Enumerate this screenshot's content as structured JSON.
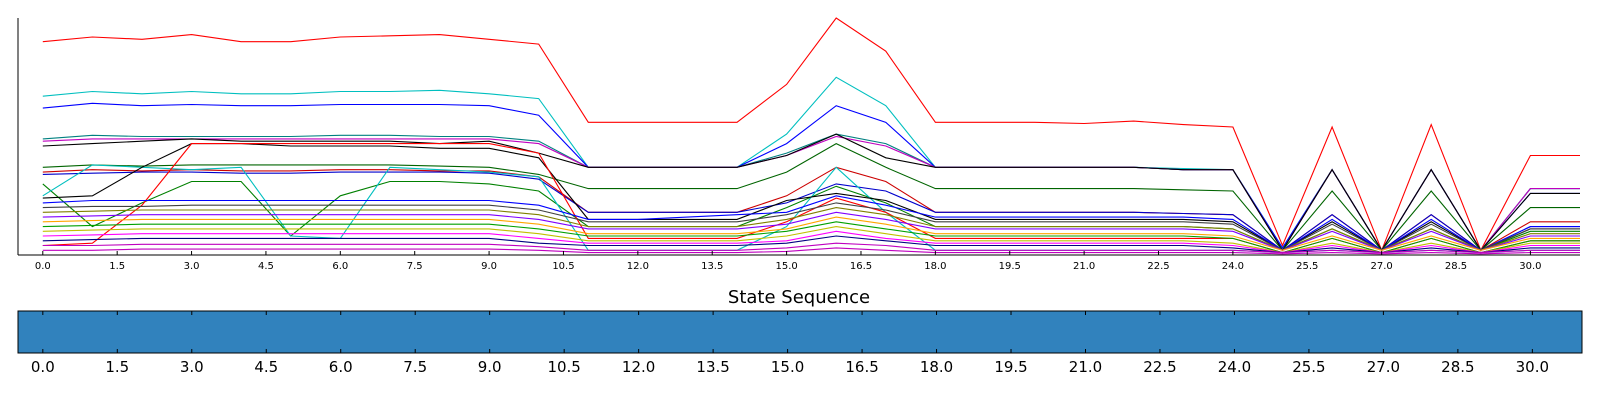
{
  "chart_data": [
    {
      "type": "line",
      "title": "",
      "xlabel": "",
      "ylabel": "",
      "xlim": [
        -0.5,
        31
      ],
      "ylim": [
        0,
        1
      ],
      "x_ticks": [
        "0.0",
        "1.5",
        "3.0",
        "4.5",
        "6.0",
        "7.5",
        "9.0",
        "10.5",
        "12.0",
        "13.5",
        "15.0",
        "16.5",
        "18.0",
        "19.5",
        "21.0",
        "22.5",
        "24.0",
        "25.5",
        "27.0",
        "28.5",
        "30.0"
      ],
      "x": [
        0,
        1,
        2,
        3,
        4,
        5,
        6,
        7,
        8,
        9,
        10,
        11,
        12,
        13,
        14,
        15,
        16,
        17,
        18,
        19,
        20,
        21,
        22,
        23,
        24,
        25,
        26,
        27,
        28,
        29,
        30,
        31
      ],
      "series": [
        {
          "color": "#ff0000",
          "values": [
            0.9,
            0.92,
            0.91,
            0.93,
            0.9,
            0.9,
            0.92,
            0.925,
            0.93,
            0.91,
            0.89,
            0.56,
            0.56,
            0.56,
            0.56,
            0.72,
            1.0,
            0.86,
            0.56,
            0.56,
            0.56,
            0.555,
            0.565,
            0.55,
            0.54,
            0.04,
            0.54,
            0.02,
            0.55,
            0.02,
            0.42,
            0.42
          ]
        },
        {
          "color": "#00bfbf",
          "values": [
            0.67,
            0.69,
            0.68,
            0.69,
            0.68,
            0.68,
            0.69,
            0.69,
            0.695,
            0.68,
            0.66,
            0.37,
            0.37,
            0.37,
            0.37,
            0.51,
            0.75,
            0.63,
            0.37,
            0.37,
            0.37,
            0.37,
            0.37,
            0.365,
            0.36,
            0.03,
            0.36,
            0.02,
            0.36,
            0.02,
            0.28,
            0.28
          ]
        },
        {
          "color": "#0000ff",
          "values": [
            0.62,
            0.64,
            0.63,
            0.635,
            0.63,
            0.63,
            0.635,
            0.635,
            0.635,
            0.63,
            0.59,
            0.37,
            0.37,
            0.37,
            0.37,
            0.47,
            0.63,
            0.56,
            0.37,
            0.37,
            0.37,
            0.37,
            0.37,
            0.36,
            0.36,
            0.03,
            0.36,
            0.02,
            0.36,
            0.02,
            0.26,
            0.26
          ]
        },
        {
          "color": "#008080",
          "values": [
            0.49,
            0.505,
            0.5,
            0.5,
            0.5,
            0.5,
            0.505,
            0.505,
            0.5,
            0.5,
            0.48,
            0.37,
            0.37,
            0.37,
            0.37,
            0.43,
            0.51,
            0.47,
            0.37,
            0.37,
            0.37,
            0.37,
            0.37,
            0.36,
            0.36,
            0.02,
            0.36,
            0.02,
            0.36,
            0.02,
            0.28,
            0.28
          ]
        },
        {
          "color": "#bf00bf",
          "values": [
            0.48,
            0.49,
            0.49,
            0.49,
            0.49,
            0.49,
            0.49,
            0.49,
            0.49,
            0.49,
            0.47,
            0.37,
            0.37,
            0.37,
            0.37,
            0.42,
            0.5,
            0.46,
            0.37,
            0.37,
            0.37,
            0.37,
            0.37,
            0.36,
            0.36,
            0.02,
            0.36,
            0.02,
            0.36,
            0.02,
            0.28,
            0.28
          ]
        },
        {
          "color": "#000000",
          "values": [
            0.46,
            0.47,
            0.48,
            0.49,
            0.48,
            0.48,
            0.48,
            0.48,
            0.47,
            0.48,
            0.43,
            0.37,
            0.37,
            0.37,
            0.37,
            0.42,
            0.51,
            0.41,
            0.37,
            0.37,
            0.37,
            0.37,
            0.37,
            0.36,
            0.36,
            0.02,
            0.36,
            0.02,
            0.36,
            0.02,
            0.26,
            0.26
          ]
        },
        {
          "color": "#006400",
          "values": [
            0.37,
            0.38,
            0.375,
            0.38,
            0.38,
            0.38,
            0.38,
            0.38,
            0.375,
            0.37,
            0.34,
            0.28,
            0.28,
            0.28,
            0.28,
            0.35,
            0.47,
            0.37,
            0.28,
            0.28,
            0.28,
            0.28,
            0.28,
            0.275,
            0.27,
            0.02,
            0.27,
            0.02,
            0.27,
            0.02,
            0.2,
            0.2
          ]
        },
        {
          "color": "#cc0000",
          "values": [
            0.35,
            0.36,
            0.355,
            0.36,
            0.355,
            0.355,
            0.36,
            0.36,
            0.355,
            0.355,
            0.33,
            0.18,
            0.18,
            0.18,
            0.18,
            0.25,
            0.37,
            0.31,
            0.18,
            0.18,
            0.18,
            0.18,
            0.18,
            0.175,
            0.17,
            0.02,
            0.17,
            0.02,
            0.17,
            0.02,
            0.14,
            0.14
          ]
        },
        {
          "color": "#0000cc",
          "values": [
            0.34,
            0.345,
            0.35,
            0.35,
            0.345,
            0.345,
            0.35,
            0.35,
            0.35,
            0.345,
            0.32,
            0.18,
            0.18,
            0.18,
            0.18,
            0.22,
            0.3,
            0.27,
            0.18,
            0.18,
            0.18,
            0.18,
            0.18,
            0.175,
            0.17,
            0.02,
            0.17,
            0.02,
            0.17,
            0.02,
            0.12,
            0.12
          ]
        },
        {
          "color": "#008000",
          "values": [
            0.3,
            0.12,
            0.22,
            0.31,
            0.31,
            0.08,
            0.25,
            0.31,
            0.31,
            0.3,
            0.27,
            0.12,
            0.12,
            0.12,
            0.12,
            0.2,
            0.29,
            0.22,
            0.12,
            0.12,
            0.12,
            0.12,
            0.12,
            0.12,
            0.11,
            0.02,
            0.11,
            0.02,
            0.11,
            0.02,
            0.1,
            0.1
          ]
        },
        {
          "color": "#00bfbf",
          "values": [
            0.25,
            0.38,
            0.37,
            0.36,
            0.37,
            0.08,
            0.07,
            0.37,
            0.36,
            0.35,
            0.33,
            0.02,
            0.02,
            0.02,
            0.02,
            0.12,
            0.37,
            0.18,
            0.02,
            0.02,
            0.02,
            0.02,
            0.02,
            0.02,
            0.02,
            0.01,
            0.02,
            0.01,
            0.02,
            0.01,
            0.02,
            0.02
          ]
        },
        {
          "color": "#000000",
          "values": [
            0.24,
            0.25,
            0.37,
            0.47,
            0.47,
            0.46,
            0.46,
            0.46,
            0.45,
            0.45,
            0.41,
            0.15,
            0.15,
            0.15,
            0.15,
            0.23,
            0.26,
            0.23,
            0.15,
            0.15,
            0.15,
            0.15,
            0.15,
            0.15,
            0.14,
            0.02,
            0.14,
            0.02,
            0.14,
            0.02,
            0.11,
            0.11
          ]
        },
        {
          "color": "#ff0000",
          "values": [
            0.04,
            0.05,
            0.21,
            0.47,
            0.47,
            0.47,
            0.47,
            0.47,
            0.47,
            0.47,
            0.43,
            0.07,
            0.07,
            0.07,
            0.07,
            0.14,
            0.24,
            0.18,
            0.07,
            0.07,
            0.07,
            0.07,
            0.07,
            0.07,
            0.07,
            0.01,
            0.07,
            0.01,
            0.07,
            0.01,
            0.06,
            0.06
          ]
        },
        {
          "color": "#0000ff",
          "values": [
            0.22,
            0.23,
            0.23,
            0.23,
            0.23,
            0.23,
            0.23,
            0.23,
            0.23,
            0.23,
            0.21,
            0.15,
            0.15,
            0.16,
            0.17,
            0.18,
            0.25,
            0.21,
            0.16,
            0.16,
            0.16,
            0.16,
            0.16,
            0.16,
            0.15,
            0.02,
            0.15,
            0.02,
            0.15,
            0.02,
            0.12,
            0.12
          ]
        },
        {
          "color": "#404040",
          "values": [
            0.2,
            0.205,
            0.205,
            0.21,
            0.21,
            0.21,
            0.21,
            0.21,
            0.21,
            0.21,
            0.19,
            0.14,
            0.14,
            0.14,
            0.14,
            0.17,
            0.22,
            0.19,
            0.14,
            0.14,
            0.14,
            0.14,
            0.14,
            0.14,
            0.13,
            0.02,
            0.13,
            0.02,
            0.13,
            0.02,
            0.11,
            0.11
          ]
        },
        {
          "color": "#808000",
          "values": [
            0.18,
            0.185,
            0.19,
            0.19,
            0.19,
            0.19,
            0.19,
            0.19,
            0.19,
            0.19,
            0.17,
            0.12,
            0.12,
            0.12,
            0.12,
            0.15,
            0.2,
            0.17,
            0.12,
            0.12,
            0.12,
            0.12,
            0.12,
            0.12,
            0.11,
            0.02,
            0.11,
            0.02,
            0.11,
            0.02,
            0.09,
            0.09
          ]
        },
        {
          "color": "#8000ff",
          "values": [
            0.16,
            0.165,
            0.17,
            0.17,
            0.17,
            0.17,
            0.17,
            0.17,
            0.17,
            0.17,
            0.15,
            0.11,
            0.11,
            0.11,
            0.11,
            0.13,
            0.18,
            0.15,
            0.11,
            0.11,
            0.11,
            0.11,
            0.11,
            0.11,
            0.1,
            0.02,
            0.1,
            0.02,
            0.1,
            0.02,
            0.08,
            0.08
          ]
        },
        {
          "color": "#ffa500",
          "values": [
            0.14,
            0.145,
            0.15,
            0.15,
            0.15,
            0.15,
            0.15,
            0.15,
            0.15,
            0.15,
            0.13,
            0.09,
            0.09,
            0.09,
            0.09,
            0.11,
            0.16,
            0.13,
            0.09,
            0.09,
            0.09,
            0.09,
            0.09,
            0.09,
            0.08,
            0.02,
            0.08,
            0.02,
            0.08,
            0.02,
            0.07,
            0.07
          ]
        },
        {
          "color": "#00a000",
          "values": [
            0.12,
            0.125,
            0.13,
            0.13,
            0.13,
            0.13,
            0.13,
            0.13,
            0.13,
            0.13,
            0.11,
            0.08,
            0.08,
            0.08,
            0.08,
            0.1,
            0.14,
            0.11,
            0.08,
            0.08,
            0.08,
            0.08,
            0.08,
            0.08,
            0.07,
            0.01,
            0.07,
            0.01,
            0.07,
            0.01,
            0.06,
            0.06
          ]
        },
        {
          "color": "#c0c000",
          "values": [
            0.1,
            0.105,
            0.11,
            0.11,
            0.11,
            0.11,
            0.11,
            0.11,
            0.11,
            0.11,
            0.09,
            0.06,
            0.06,
            0.06,
            0.06,
            0.08,
            0.12,
            0.09,
            0.06,
            0.06,
            0.06,
            0.06,
            0.06,
            0.06,
            0.05,
            0.01,
            0.05,
            0.01,
            0.05,
            0.01,
            0.05,
            0.05
          ]
        },
        {
          "color": "#ff00ff",
          "values": [
            0.08,
            0.085,
            0.09,
            0.09,
            0.09,
            0.09,
            0.09,
            0.09,
            0.09,
            0.09,
            0.07,
            0.05,
            0.05,
            0.05,
            0.05,
            0.06,
            0.1,
            0.07,
            0.05,
            0.05,
            0.05,
            0.05,
            0.05,
            0.05,
            0.04,
            0.01,
            0.04,
            0.01,
            0.04,
            0.01,
            0.04,
            0.04
          ]
        },
        {
          "color": "#000080",
          "values": [
            0.06,
            0.065,
            0.07,
            0.07,
            0.07,
            0.07,
            0.07,
            0.07,
            0.07,
            0.07,
            0.05,
            0.04,
            0.04,
            0.04,
            0.04,
            0.05,
            0.08,
            0.06,
            0.04,
            0.04,
            0.04,
            0.04,
            0.04,
            0.04,
            0.03,
            0.01,
            0.03,
            0.01,
            0.03,
            0.01,
            0.03,
            0.03
          ]
        },
        {
          "color": "#bf00bf",
          "values": [
            0.04,
            0.04,
            0.045,
            0.045,
            0.045,
            0.045,
            0.045,
            0.045,
            0.045,
            0.045,
            0.035,
            0.02,
            0.02,
            0.02,
            0.02,
            0.03,
            0.05,
            0.04,
            0.02,
            0.02,
            0.02,
            0.02,
            0.02,
            0.02,
            0.02,
            0.01,
            0.02,
            0.01,
            0.02,
            0.01,
            0.02,
            0.02
          ]
        },
        {
          "color": "#bf00bf",
          "values": [
            0.02,
            0.02,
            0.025,
            0.025,
            0.025,
            0.025,
            0.025,
            0.025,
            0.025,
            0.025,
            0.02,
            0.01,
            0.01,
            0.01,
            0.01,
            0.015,
            0.03,
            0.02,
            0.01,
            0.01,
            0.01,
            0.01,
            0.01,
            0.01,
            0.01,
            0.005,
            0.01,
            0.005,
            0.01,
            0.005,
            0.01,
            0.01
          ]
        }
      ]
    },
    {
      "type": "heatmap",
      "title": "State Sequence",
      "xlim": [
        -0.5,
        31
      ],
      "x_ticks": [
        "0.0",
        "1.5",
        "3.0",
        "4.5",
        "6.0",
        "7.5",
        "9.0",
        "10.5",
        "12.0",
        "13.5",
        "15.0",
        "16.5",
        "18.0",
        "19.5",
        "21.0",
        "22.5",
        "24.0",
        "25.5",
        "27.0",
        "28.5",
        "30.0"
      ],
      "states": [
        0,
        0,
        0,
        0,
        0,
        0,
        0,
        0,
        0,
        0,
        0,
        0,
        0,
        0,
        0,
        0,
        0,
        0,
        0,
        0,
        0,
        0,
        0,
        0,
        0,
        0,
        0,
        0,
        0,
        0,
        0,
        0
      ],
      "fill_color": "#3182bd"
    }
  ]
}
